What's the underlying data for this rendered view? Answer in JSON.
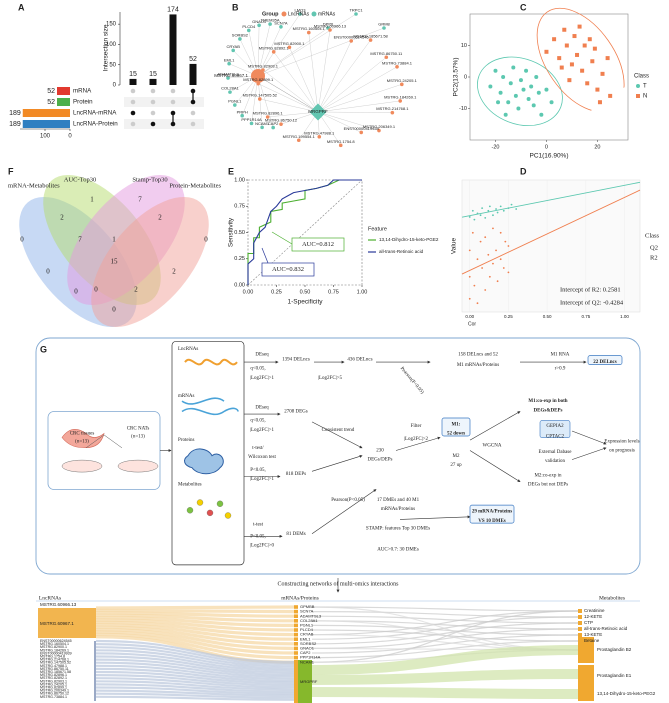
{
  "panel_labels": [
    "A",
    "B",
    "C",
    "D",
    "E",
    "F",
    "G"
  ],
  "chart_data": [
    {
      "type": "upset",
      "ylabel": "Intersection size",
      "values": [
        15,
        15,
        174,
        52
      ],
      "ylim": [
        0,
        180
      ],
      "yticks": [
        0,
        50,
        100,
        150
      ],
      "sets": [
        {
          "name": "mRNA",
          "size": 52,
          "color": "#e2392f"
        },
        {
          "name": "Protein",
          "size": 52,
          "color": "#4daf4a"
        },
        {
          "name": "LncRNA-mRNA",
          "size": 189,
          "color": "#f28a25"
        },
        {
          "name": "LncRNA-Protein",
          "size": 189,
          "color": "#2f7fc1"
        }
      ],
      "combinations": [
        [
          2
        ],
        [
          3
        ],
        [
          2,
          3
        ],
        [
          0,
          1
        ]
      ],
      "setlim": [
        0,
        200
      ],
      "setticks": [
        100,
        0
      ]
    },
    {
      "type": "network",
      "legend_title": "Group",
      "groups": [
        {
          "name": "LncRNAs",
          "color": "#f08a5d"
        },
        {
          "name": "mRNAs",
          "color": "#62c6b1"
        }
      ],
      "hubs": [
        {
          "label": "MSTRG.60967.1",
          "group": 0
        },
        {
          "label": "MRGPRF",
          "group": 1
        }
      ],
      "mrna_nodes": [
        "CAP2",
        "NCAM1",
        "PPP1R14A",
        "PRPH",
        "PGNL1",
        "COL28A1",
        "ADAMTSL3",
        "EML1",
        "CRYAB",
        "SORBS2",
        "PLCD4",
        "GNAO1",
        "TMEM35A",
        "SCN7A",
        "LMO3",
        "DPP6",
        "TRPC1",
        "GRM8"
      ],
      "lnc_nodes": [
        "MSTRG.60966.13",
        "ENST00000624545",
        "MSTRG.185671.58",
        "MSTRG.86750.11",
        "MSTRG.73884.1",
        "MSTRG.24205.1",
        "MSTRG.184269.1",
        "MSTRG.214768.1",
        "MSTRG.206349.1",
        "ENST00000419939",
        "MSTRG.1754.8",
        "MSTRG.47988.1",
        "MSTRG.199554.1",
        "MSTRG.86750.12",
        "MSTRG.82896.1",
        "MSTRG.147505.52",
        "MSTRG.82899.1",
        "MSTRG.82903.1",
        "MSTRG.82892.1",
        "MSTRG.82900.1",
        "MSTRG.160504.1"
      ]
    },
    {
      "type": "scatter",
      "xlabel": "PC1(16.90%)",
      "ylabel": "PC2(13.57%)",
      "legend_title": "Class",
      "xlim": [
        -30,
        32
      ],
      "ylim": [
        -20,
        20
      ],
      "xticks": [
        -20,
        0,
        20
      ],
      "yticks": [
        -10,
        0,
        10
      ],
      "series": [
        {
          "name": "T",
          "color": "#5cc8b0",
          "marker": "circle",
          "x": [
            -22,
            -20,
            -18,
            -17,
            -15,
            -14,
            -13,
            -12,
            -11,
            -10,
            -9,
            -8,
            -7,
            -6,
            -5,
            -4,
            -3,
            -2,
            0,
            2,
            -16,
            -19
          ],
          "y": [
            -3,
            2,
            -5,
            0,
            -8,
            -2,
            3,
            -6,
            -10,
            -1,
            -4,
            2,
            -7,
            -3,
            -9,
            0,
            -5,
            -12,
            -4,
            -8,
            -12,
            -8
          ]
        },
        {
          "name": "N",
          "color": "#f07f4f",
          "marker": "square",
          "x": [
            0,
            3,
            5,
            7,
            8,
            10,
            11,
            12,
            14,
            15,
            16,
            18,
            19,
            20,
            22,
            24,
            25,
            6,
            9,
            13,
            17,
            21
          ],
          "y": [
            8,
            12,
            6,
            15,
            10,
            4,
            13,
            7,
            2,
            10,
            -2,
            5,
            9,
            -4,
            1,
            6,
            -6,
            3,
            -1,
            16,
            12,
            -8
          ]
        }
      ]
    },
    {
      "type": "venn",
      "sets": [
        {
          "name": "mRNA-Metabolites",
          "color": "#8fb4ea"
        },
        {
          "name": "AUC-Top30",
          "color": "#b5dc6e"
        },
        {
          "name": "Stamp-Top30",
          "color": "#e39ae0"
        },
        {
          "name": "Protein-Metabolites",
          "color": "#f2a29a"
        }
      ],
      "values": [
        0,
        1,
        7,
        0,
        2,
        7,
        1,
        2,
        0,
        15,
        2,
        0,
        0,
        2,
        0
      ]
    },
    {
      "type": "line",
      "xlabel": "1-Specificity",
      "ylabel": "Sensitivity",
      "legend_title": "Feature",
      "xlim": [
        0,
        1
      ],
      "ylim": [
        0,
        1
      ],
      "xticks": [
        {
          "value": 0,
          "label": "0.00"
        },
        {
          "value": 0.25,
          "label": "0.25"
        },
        {
          "value": 0.5,
          "label": "0.50"
        },
        {
          "value": 0.75,
          "label": "0.75"
        },
        {
          "value": 1,
          "label": "1.00"
        }
      ],
      "yticks": [
        {
          "value": 0,
          "label": "0.00"
        },
        {
          "value": 0.25,
          "label": "0.25"
        },
        {
          "value": 0.5,
          "label": "0.50"
        },
        {
          "value": 0.75,
          "label": "0.75"
        },
        {
          "value": 1,
          "label": "1.00"
        }
      ],
      "series": [
        {
          "name": "13,14-Dihydro-15-keto-PGE2",
          "color": "#4caf30",
          "auc": "AUC=0.812",
          "x": [
            0,
            0,
            0.05,
            0.05,
            0.1,
            0.1,
            0.2,
            0.2,
            0.3,
            0.3,
            0.4,
            0.5,
            0.5,
            0.6,
            0.7,
            0.8,
            0.9,
            1
          ],
          "y": [
            0,
            0.3,
            0.3,
            0.45,
            0.45,
            0.55,
            0.6,
            0.7,
            0.72,
            0.78,
            0.8,
            0.82,
            0.9,
            0.92,
            0.95,
            1,
            1,
            1
          ]
        },
        {
          "name": "all-trans-Retinoic acid",
          "color": "#2a3a9a",
          "auc": "AUC=0.832",
          "x": [
            0,
            0,
            0.05,
            0.05,
            0.1,
            0.15,
            0.2,
            0.25,
            0.3,
            0.35,
            0.4,
            0.5,
            0.6,
            0.7,
            0.75,
            0.85,
            1
          ],
          "y": [
            0,
            0.2,
            0.25,
            0.4,
            0.5,
            0.55,
            0.7,
            0.75,
            0.82,
            0.85,
            0.88,
            0.9,
            0.92,
            0.95,
            1,
            1,
            1
          ]
        }
      ]
    },
    {
      "type": "regression",
      "xlabel": "Cor",
      "ylabel": "Value",
      "legend_title": "Class",
      "xlim": [
        -0.05,
        1.1
      ],
      "ylim": [
        -0.6,
        0.9
      ],
      "xticks": [
        {
          "value": 0,
          "label": "0.00"
        },
        {
          "value": 0.25,
          "label": "0.25"
        },
        {
          "value": 0.5,
          "label": "0.50"
        },
        {
          "value": 0.75,
          "label": "0.75"
        },
        {
          "value": 1,
          "label": "1.00"
        }
      ],
      "annotations": [
        "Intercept of R2: 0.2581",
        "Intercept of Q2: -0.4284"
      ],
      "series": [
        {
          "name": "Q2",
          "color": "#5cc8b0",
          "x": [
            0,
            0.02,
            0.03,
            0.05,
            0.07,
            0.08,
            0.1,
            0.12,
            0.13,
            0.15,
            0.17,
            0.18,
            0.2,
            0.22,
            0.25,
            0.27,
            0.3
          ],
          "y": [
            0.48,
            0.55,
            0.45,
            0.52,
            0.5,
            0.58,
            0.47,
            0.55,
            0.6,
            0.5,
            0.57,
            0.53,
            0.6,
            0.55,
            0.58,
            0.62,
            0.57
          ]
        },
        {
          "name": "R2",
          "color": "#f07f4f",
          "x": [
            0,
            0,
            0,
            0.02,
            0.03,
            0.05,
            0.05,
            0.07,
            0.08,
            0.1,
            0.1,
            0.12,
            0.13,
            0.15,
            0.15,
            0.17,
            0.18,
            0.2,
            0.2,
            0.22,
            0.23,
            0.25,
            0.25
          ],
          "y": [
            -0.45,
            0.1,
            -0.2,
            0.3,
            -0.3,
            0,
            -0.5,
            0.2,
            -0.1,
            0.25,
            -0.35,
            0.05,
            -0.2,
            0.35,
            -0.05,
            0.1,
            -0.25,
            0.3,
            0,
            -0.1,
            0.2,
            0.15,
            -0.15
          ]
        }
      ]
    }
  ],
  "diagram": {
    "texts": [
      "CRC tissues",
      "(n=13)",
      "CRC NATs",
      "(n=13)",
      "LncRNAs",
      "mRNAs",
      "Proteins",
      "Metabolites",
      "DEseq",
      "q<0.05,",
      "|Log2FC|>1",
      "1394 DELncs",
      "|Log2FC|>5",
      "436 DELncs",
      "Pearson(P<0.05)",
      "158 DELncs and 52",
      "M1 mRNAs/Proteins",
      "M1 RNA",
      "r>0.9",
      "22 DELncs",
      "DEseq",
      "q<0.05,",
      "|Log2FC|>1",
      "2708 DEGs",
      "Consistent trend",
      "230",
      "DEGs/DEPs",
      "Filter",
      "|Log2FC|>2",
      "M1:",
      "52 down",
      "M2",
      "27 up",
      "WGCNA",
      "M1:co-exp in both",
      "DEGs&DEPs",
      "GEPIA2",
      "CPTAC2",
      "External Dabase",
      "validation",
      "Expression levels",
      "on prognosis",
      "M2:co-exp in",
      "DEGs but not DEPs",
      "t-test/",
      "Wilcoxon test",
      "P<0.05,",
      "|Log2FC|>1",
      "818 DEPs",
      "Pearson(P<0.05)",
      "17 DMEs and 40 M1",
      "mRNAs/Proteins",
      "STAMP: features Top 30 DMEs",
      "AUC>0.7: 30 DMEs",
      "29 mRNA/Proteins",
      "VS 10 DMEs",
      "t-test",
      "P<0.05,",
      "|Log2FC|>0",
      "81 DEMs",
      "Constructing networks of multi-omics interactions"
    ]
  },
  "sankey": {
    "headers": [
      "LncRNAs",
      "mRNAs/Proteins",
      "Metabolites"
    ],
    "lncrnas": [
      "MSTRG.60966.13",
      "MSTRG.60967.1",
      "ENST00000624545",
      "MSTRG.160504.1",
      "MSTRG.82900.1",
      "MSTRG.184269.1",
      "ENST00000419939",
      "MSTRG.1754.8",
      "MSTRG.214768.1",
      "MSTRG.147505.52",
      "MSTRG.47988.1",
      "MSTRG.86750.11",
      "MSTRG.185671.58",
      "MSTRG.82896.1",
      "MSTRG.82892.1",
      "MSTRG.82903.1",
      "MSTRG.24205.1",
      "MSTRG.82899.1",
      "MSTRG.206349.1",
      "MSTRG.86750.12",
      "MSTRG.73884.1"
    ],
    "genes": [
      "GPMBB",
      "SCN7A",
      "ADAMTSL3",
      "COL28A1",
      "PGNL1",
      "PLCD4",
      "CRYAB",
      "EML1",
      "SORBS2",
      "GNAO1",
      "CAP2",
      "PPP1R14A",
      "NCAM1",
      "MRGPRF"
    ],
    "metabolites": [
      "Creatinine",
      "12-KETE",
      "CTP",
      "all-trans-Retinoic acid",
      "13-KETE",
      "Betaine",
      "Prostaglandin B2",
      "Prostaglandin E1",
      "13,14-Dihydro-15-keto-PEG2"
    ]
  }
}
